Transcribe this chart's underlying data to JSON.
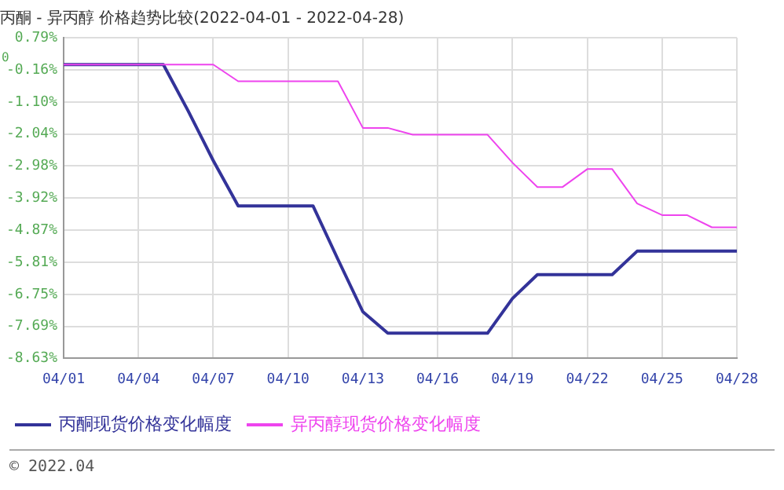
{
  "chart_data": {
    "type": "line",
    "title": "丙酮 - 异丙醇 价格趋势比较(2022-04-01 - 2022-04-28)",
    "categories": [
      "04/01",
      null,
      null,
      "04/04",
      null,
      null,
      "04/07",
      null,
      null,
      "04/10",
      null,
      null,
      "04/13",
      null,
      null,
      "04/16",
      null,
      null,
      "04/19",
      null,
      null,
      "04/22",
      null,
      null,
      "04/25",
      null,
      null,
      "04/28"
    ],
    "series": [
      {
        "name": "丙酮现货价格变化幅度",
        "color": "#333399",
        "values": [
          0,
          0,
          0,
          0,
          0,
          -1.37,
          -2.82,
          -4.15,
          -4.15,
          -4.15,
          -4.15,
          -5.72,
          -7.26,
          -7.89,
          -7.89,
          -7.89,
          -7.89,
          -7.89,
          -6.87,
          -6.17,
          -6.17,
          -6.17,
          -6.17,
          -5.48,
          -5.48,
          -5.48,
          -5.48,
          -5.48
        ]
      },
      {
        "name": "异丙醇现货价格变化幅度",
        "color": "#ee44ee",
        "values": [
          0,
          0,
          0,
          0,
          0,
          0,
          0,
          -0.49,
          -0.49,
          -0.49,
          -0.49,
          -0.49,
          -1.86,
          -1.86,
          -2.06,
          -2.06,
          -2.06,
          -2.06,
          -2.88,
          -3.6,
          -3.6,
          -3.07,
          -3.07,
          -4.08,
          -4.42,
          -4.42,
          -4.78,
          -4.78
        ]
      }
    ],
    "ylim": [
      -8.63,
      0.79
    ],
    "yticks": [
      {
        "value": 0.79,
        "label": "0.79%"
      },
      {
        "value": -0.16,
        "label": "-0.16%"
      },
      {
        "value": -1.1,
        "label": "-1.10%"
      },
      {
        "value": -2.04,
        "label": "-2.04%"
      },
      {
        "value": -2.98,
        "label": "-2.98%"
      },
      {
        "value": -3.92,
        "label": "-3.92%"
      },
      {
        "value": -4.87,
        "label": "-4.87%"
      },
      {
        "value": -5.81,
        "label": "-5.81%"
      },
      {
        "value": -6.75,
        "label": "-6.75%"
      },
      {
        "value": -7.69,
        "label": "-7.69%"
      },
      {
        "value": -8.63,
        "label": "-8.63%"
      }
    ],
    "grid": true,
    "legend": "bottom",
    "marker": "none",
    "line_style": "solid",
    "annotations": [
      "0",
      "© 2022.04"
    ]
  }
}
